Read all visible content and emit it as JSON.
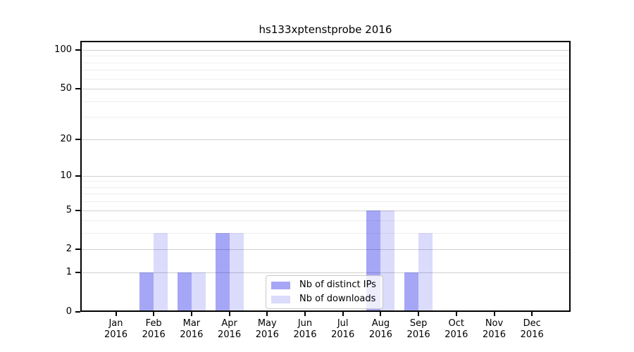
{
  "chart_data": {
    "type": "bar",
    "title": "hs133xptenstprobe 2016",
    "categories": [
      "Jan 2016",
      "Feb 2016",
      "Mar 2016",
      "Apr 2016",
      "May 2016",
      "Jun 2016",
      "Jul 2016",
      "Aug 2016",
      "Sep 2016",
      "Oct 2016",
      "Nov 2016",
      "Dec 2016"
    ],
    "series": [
      {
        "name": "Nb of distinct IPs",
        "color": "#0000e659",
        "values": [
          0,
          1,
          1,
          3,
          0,
          0,
          0,
          5,
          1,
          0,
          0,
          0
        ]
      },
      {
        "name": "Nb of downloads",
        "color": "#0000e624",
        "values": [
          0,
          3,
          1,
          3,
          0,
          0,
          0,
          5,
          3,
          0,
          0,
          0
        ]
      }
    ],
    "xlabel": "",
    "ylabel": "",
    "yscale": "log1p",
    "ylim": [
      0,
      100
    ],
    "yticks": [
      0,
      1,
      2,
      5,
      10,
      20,
      50,
      100
    ],
    "minor_yticks": [
      3,
      4,
      6,
      7,
      8,
      9,
      30,
      40,
      60,
      70,
      80,
      90
    ],
    "grid": "on",
    "legend_position": "lower-center-inside",
    "colors": {
      "major_grid": "#d0d0d0",
      "minor_grid": "#efefef",
      "axis": "#000000",
      "background": "#ffffff"
    }
  }
}
